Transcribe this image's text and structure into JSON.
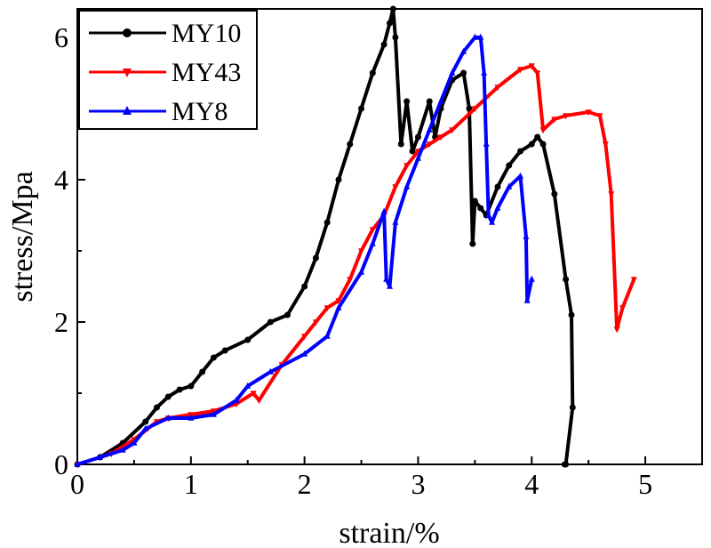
{
  "chart_data": {
    "type": "line",
    "title": "",
    "xlabel": "strain/%",
    "ylabel": "stress/Mpa",
    "xlim": [
      0,
      5.5
    ],
    "ylim": [
      0,
      6.4
    ],
    "xticks": [
      0,
      1,
      2,
      3,
      4,
      5
    ],
    "xtick_labels": [
      "0",
      "1",
      "2",
      "3",
      "4",
      "5"
    ],
    "yticks": [
      0,
      2,
      4,
      6
    ],
    "ytick_labels": [
      "0",
      "2",
      "4",
      "6"
    ],
    "legend_position": "top-left",
    "series": [
      {
        "name": "MY10",
        "color": "#000000",
        "marker": "circle",
        "x": [
          0,
          0.2,
          0.4,
          0.6,
          0.7,
          0.8,
          0.9,
          1.0,
          1.1,
          1.2,
          1.3,
          1.5,
          1.7,
          1.85,
          2.0,
          2.1,
          2.2,
          2.3,
          2.4,
          2.5,
          2.6,
          2.7,
          2.75,
          2.78,
          2.8,
          2.85,
          2.9,
          2.95,
          3.0,
          3.1,
          3.15,
          3.2,
          3.3,
          3.4,
          3.45,
          3.48,
          3.5,
          3.55,
          3.6,
          3.7,
          3.8,
          3.9,
          4.0,
          4.05,
          4.1,
          4.2,
          4.3,
          4.35,
          4.36,
          4.3,
          4.29
        ],
        "y": [
          0,
          0.1,
          0.3,
          0.6,
          0.8,
          0.95,
          1.05,
          1.1,
          1.3,
          1.5,
          1.6,
          1.75,
          2.0,
          2.1,
          2.5,
          2.9,
          3.4,
          4.0,
          4.5,
          5.0,
          5.5,
          5.9,
          6.2,
          6.4,
          6.0,
          4.5,
          5.1,
          4.4,
          4.6,
          5.1,
          4.6,
          5.0,
          5.4,
          5.5,
          5.0,
          3.1,
          3.7,
          3.6,
          3.5,
          3.9,
          4.2,
          4.4,
          4.5,
          4.6,
          4.5,
          3.8,
          2.6,
          2.1,
          0.8,
          0.0,
          0.0
        ]
      },
      {
        "name": "MY43",
        "color": "#ff0000",
        "marker": "triangle-down",
        "x": [
          0,
          0.3,
          0.5,
          0.7,
          0.8,
          1.0,
          1.2,
          1.4,
          1.55,
          1.6,
          1.8,
          2.0,
          2.1,
          2.2,
          2.3,
          2.4,
          2.5,
          2.6,
          2.7,
          2.8,
          2.9,
          3.0,
          3.1,
          3.2,
          3.3,
          3.5,
          3.7,
          3.9,
          4.0,
          4.05,
          4.1,
          4.2,
          4.3,
          4.5,
          4.6,
          4.65,
          4.7,
          4.75,
          4.8,
          4.9
        ],
        "y": [
          0,
          0.15,
          0.35,
          0.6,
          0.65,
          0.7,
          0.75,
          0.85,
          1.0,
          0.9,
          1.4,
          1.8,
          2.0,
          2.2,
          2.3,
          2.6,
          3.0,
          3.3,
          3.5,
          3.9,
          4.2,
          4.4,
          4.5,
          4.6,
          4.7,
          5.0,
          5.3,
          5.55,
          5.6,
          5.5,
          4.7,
          4.85,
          4.9,
          4.95,
          4.9,
          4.5,
          3.8,
          1.9,
          2.2,
          2.6
        ]
      },
      {
        "name": "MY8",
        "color": "#0000ff",
        "marker": "triangle-up",
        "x": [
          0,
          0.2,
          0.4,
          0.5,
          0.6,
          0.8,
          1.0,
          1.2,
          1.4,
          1.5,
          1.7,
          2.0,
          2.2,
          2.3,
          2.5,
          2.6,
          2.7,
          2.72,
          2.75,
          2.8,
          2.9,
          3.0,
          3.1,
          3.2,
          3.3,
          3.4,
          3.5,
          3.55,
          3.58,
          3.6,
          3.62,
          3.65,
          3.7,
          3.8,
          3.9,
          3.95,
          3.96,
          4.0
        ],
        "y": [
          0,
          0.1,
          0.2,
          0.3,
          0.5,
          0.65,
          0.65,
          0.7,
          0.9,
          1.1,
          1.3,
          1.55,
          1.8,
          2.2,
          2.7,
          3.1,
          3.55,
          2.6,
          2.5,
          3.4,
          3.9,
          4.3,
          4.7,
          5.1,
          5.5,
          5.8,
          6.0,
          6.0,
          5.5,
          4.5,
          3.5,
          3.4,
          3.6,
          3.9,
          4.05,
          3.2,
          2.3,
          2.6
        ]
      }
    ]
  }
}
